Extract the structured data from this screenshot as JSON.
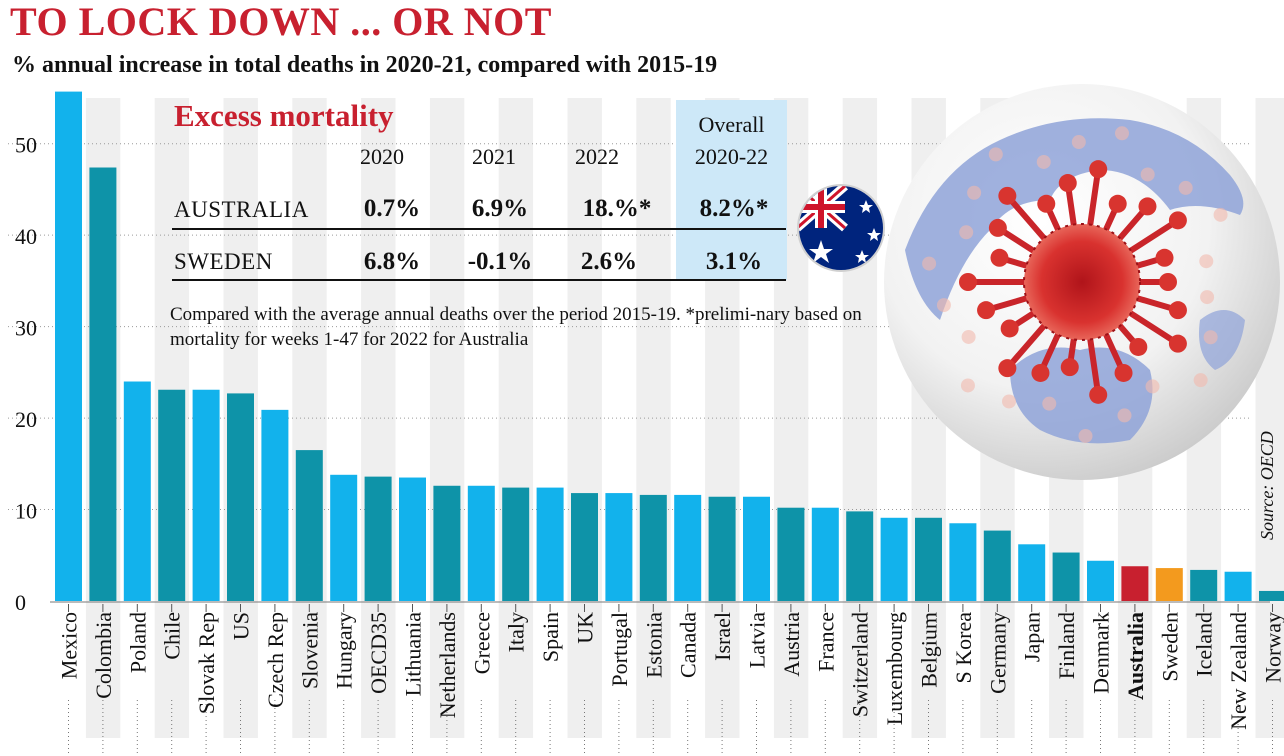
{
  "title": "TO LOCK DOWN ... OR NOT",
  "subtitle": "% annual increase in total deaths in 2020-21, compared with 2015-19",
  "table": {
    "title": "Excess mortality",
    "headers": [
      "2020",
      "2021",
      "2022"
    ],
    "overall_header_line1": "Overall",
    "overall_header_line2": "2020-22",
    "rows": [
      {
        "country": "AUSTRALIA",
        "v2020": "0.7%",
        "v2021": "6.9%",
        "v2022": "18.%*",
        "overall": "8.2%*"
      },
      {
        "country": "SWEDEN",
        "v2020": "6.8%",
        "v2021": "-0.1%",
        "v2022": "2.6%",
        "overall": "3.1%"
      }
    ],
    "note": "Compared with the average annual deaths over the period 2015-19. *prelimi-nary based on mortality for weeks 1-47 for 2022 for Australia"
  },
  "source": "Source: OECD",
  "colors": {
    "title_red": "#c8202f",
    "bar_light": "#12b2ec",
    "bar_dark": "#0e93a8",
    "australia": "#c8202f",
    "sweden": "#f39a1e",
    "overall_highlight": "#cde8f8",
    "stripe": "#efefef"
  },
  "icons": [
    "australia-flag-icon",
    "globe-virus-icon"
  ],
  "chart_data": {
    "type": "bar",
    "title": "TO LOCK DOWN ... OR NOT",
    "subtitle": "% annual increase in total deaths in 2020-21, compared with 2015-19",
    "ylim": [
      0,
      55
    ],
    "yticks": [
      0,
      10,
      20,
      30,
      40,
      50
    ],
    "grid": true,
    "categories": [
      "Mexico",
      "Colombia",
      "Poland",
      "Chile",
      "Slovak Rep",
      "US",
      "Czech Rep",
      "Slovenia",
      "Hungary",
      "OECD35",
      "Lithuania",
      "Netherlands",
      "Greece",
      "Italy",
      "Spain",
      "UK",
      "Portugal",
      "Estonia",
      "Canada",
      "Israel",
      "Latvia",
      "Austria",
      "France",
      "Switzerland",
      "Luxembourg",
      "Belgium",
      "S Korea",
      "Germany",
      "Japan",
      "Finland",
      "Denmark",
      "Australia",
      "Sweden",
      "Iceland",
      "New Zealand",
      "Norway"
    ],
    "values": [
      55.7,
      47.4,
      24.0,
      23.1,
      23.1,
      22.7,
      20.9,
      16.5,
      13.8,
      13.6,
      13.5,
      12.6,
      12.6,
      12.4,
      12.4,
      11.8,
      11.8,
      11.6,
      11.6,
      11.4,
      11.4,
      10.2,
      10.2,
      9.8,
      9.1,
      9.1,
      8.5,
      7.7,
      6.2,
      5.3,
      4.4,
      3.8,
      3.6,
      3.4,
      3.2,
      1.1
    ],
    "highlight": {
      "Australia": "#c8202f",
      "Sweden": "#f39a1e"
    }
  }
}
